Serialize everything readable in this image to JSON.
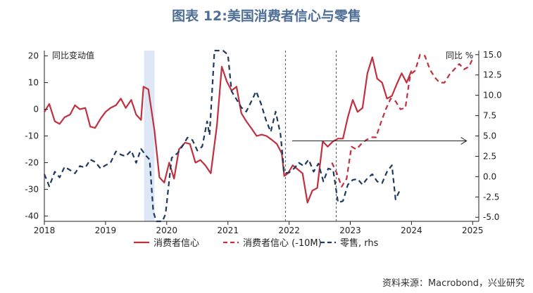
{
  "title": "图表 12:美国消费者信心与零售",
  "source": "资料来源：Macrobond，兴业研究",
  "chart_data": {
    "type": "line",
    "left_axis": {
      "label": "同比变动值",
      "ylim": [
        -42,
        22
      ],
      "ticks": [
        20,
        10,
        0,
        -10,
        -20,
        -30,
        -40
      ]
    },
    "right_axis": {
      "label": "同比 %",
      "ylim": [
        -5.5,
        15.5
      ],
      "ticks": [
        "15.0",
        "12.5",
        "10.0",
        "7.5",
        "5.0",
        "2.5",
        "0.0",
        "-2.5",
        "-5.0"
      ],
      "tick_values": [
        15,
        12.5,
        10,
        7.5,
        5,
        2.5,
        0,
        -2.5,
        -5
      ]
    },
    "x_axis": {
      "labels": [
        "2018",
        "2019",
        "2020",
        "2021",
        "2022",
        "2023",
        "2024",
        "2025"
      ],
      "label_values": [
        2018,
        2019,
        2020,
        2021,
        2022,
        2023,
        2024,
        2025
      ],
      "xlim": [
        2018,
        2025.1
      ]
    },
    "shaded_band": [
      2019.63,
      2019.8
    ],
    "vertical_lines": [
      2021.94,
      2022.77
    ],
    "annotation_arrow": {
      "from": [
        2022.05,
        4.4
      ],
      "to": [
        2024.9,
        4.4
      ],
      "axis": "right"
    },
    "series": [
      {
        "name": "消费者信心",
        "axis": "left",
        "style": "solid",
        "color": "#c0303f",
        "points": [
          [
            2018.0,
            -1
          ],
          [
            2018.08,
            2
          ],
          [
            2018.17,
            -4.5
          ],
          [
            2018.25,
            -5.5
          ],
          [
            2018.33,
            -3
          ],
          [
            2018.42,
            -2
          ],
          [
            2018.5,
            1.5
          ],
          [
            2018.58,
            0
          ],
          [
            2018.67,
            0.5
          ],
          [
            2018.75,
            -6.5
          ],
          [
            2018.83,
            -7
          ],
          [
            2018.92,
            -3.5
          ],
          [
            2019.0,
            -1
          ],
          [
            2019.08,
            0.5
          ],
          [
            2019.17,
            1.5
          ],
          [
            2019.25,
            4
          ],
          [
            2019.33,
            0.5
          ],
          [
            2019.42,
            3.5
          ],
          [
            2019.5,
            -2
          ],
          [
            2019.58,
            -4
          ],
          [
            2019.62,
            8.5
          ],
          [
            2019.7,
            7.5
          ],
          [
            2019.8,
            -8
          ],
          [
            2019.88,
            -25.5
          ],
          [
            2019.96,
            -27.5
          ],
          [
            2020.04,
            -20
          ],
          [
            2020.12,
            -26
          ],
          [
            2020.2,
            -15
          ],
          [
            2020.3,
            -12.5
          ],
          [
            2020.38,
            -13
          ],
          [
            2020.47,
            -20
          ],
          [
            2020.55,
            -19
          ],
          [
            2020.63,
            -21
          ],
          [
            2020.72,
            -24
          ],
          [
            2020.82,
            -6
          ],
          [
            2020.9,
            16
          ],
          [
            2020.98,
            10.5
          ],
          [
            2021.06,
            7
          ],
          [
            2021.14,
            8.5
          ],
          [
            2021.22,
            -1.5
          ],
          [
            2021.3,
            -4.5
          ],
          [
            2021.38,
            -7
          ],
          [
            2021.47,
            -10
          ],
          [
            2021.55,
            -9.5
          ],
          [
            2021.63,
            -10
          ],
          [
            2021.72,
            -11.5
          ],
          [
            2021.8,
            -13
          ],
          [
            2021.88,
            -16.5
          ],
          [
            2021.92,
            -25
          ],
          [
            2021.98,
            -24
          ],
          [
            2022.06,
            -21
          ],
          [
            2022.14,
            -22.5
          ],
          [
            2022.22,
            -24
          ],
          [
            2022.3,
            -35
          ],
          [
            2022.38,
            -30.5
          ],
          [
            2022.46,
            -29.5
          ],
          [
            2022.55,
            -12
          ],
          [
            2022.63,
            -14
          ],
          [
            2022.72,
            -12
          ],
          [
            2022.8,
            -11
          ],
          [
            2022.88,
            -11
          ],
          [
            2022.96,
            -3
          ],
          [
            2023.04,
            3.5
          ],
          [
            2023.12,
            -1
          ],
          [
            2023.2,
            0.5
          ],
          [
            2023.28,
            13.5
          ],
          [
            2023.36,
            19.5
          ],
          [
            2023.44,
            11.5
          ],
          [
            2023.52,
            10
          ],
          [
            2023.6,
            4
          ],
          [
            2023.68,
            5
          ],
          [
            2023.76,
            9.5
          ],
          [
            2023.84,
            13.5
          ],
          [
            2023.92,
            10
          ],
          [
            2024.0,
            14.5
          ]
        ]
      },
      {
        "name": "消费者信心 (-10M)",
        "axis": "left",
        "style": "dashed",
        "color": "#c0303f",
        "points": [
          [
            2022.7,
            -20
          ],
          [
            2022.78,
            -24
          ],
          [
            2022.86,
            -29
          ],
          [
            2022.94,
            -26
          ],
          [
            2023.02,
            -14
          ],
          [
            2023.1,
            -15
          ],
          [
            2023.18,
            -13
          ],
          [
            2023.26,
            -11.5
          ],
          [
            2023.34,
            -10.5
          ],
          [
            2023.42,
            -10.5
          ],
          [
            2023.5,
            -5
          ],
          [
            2023.58,
            0
          ],
          [
            2023.66,
            4
          ],
          [
            2023.74,
            3
          ],
          [
            2023.82,
            0
          ],
          [
            2023.9,
            0.5
          ],
          [
            2023.98,
            13
          ],
          [
            2024.06,
            14.5
          ],
          [
            2024.14,
            20.5
          ],
          [
            2024.22,
            20
          ],
          [
            2024.3,
            15
          ],
          [
            2024.38,
            12
          ],
          [
            2024.46,
            10
          ],
          [
            2024.54,
            10
          ],
          [
            2024.62,
            13
          ],
          [
            2024.7,
            15
          ],
          [
            2024.78,
            17
          ],
          [
            2024.86,
            15
          ],
          [
            2024.94,
            16
          ],
          [
            2025.0,
            19
          ]
        ]
      },
      {
        "name": "零售, rhs",
        "axis": "right",
        "style": "dashed",
        "color": "#1f3a5f",
        "points": [
          [
            2018.0,
            0.3
          ],
          [
            2018.08,
            -1.2
          ],
          [
            2018.17,
            0.6
          ],
          [
            2018.25,
            -0.1
          ],
          [
            2018.33,
            1.2
          ],
          [
            2018.42,
            0.8
          ],
          [
            2018.5,
            0.4
          ],
          [
            2018.58,
            1.3
          ],
          [
            2018.67,
            1.1
          ],
          [
            2018.75,
            2.1
          ],
          [
            2018.83,
            1.8
          ],
          [
            2018.92,
            1.0
          ],
          [
            2019.0,
            1.4
          ],
          [
            2019.08,
            1.7
          ],
          [
            2019.17,
            3.1
          ],
          [
            2019.25,
            2.7
          ],
          [
            2019.33,
            2.5
          ],
          [
            2019.42,
            3.2
          ],
          [
            2019.5,
            1.7
          ],
          [
            2019.58,
            3.4
          ],
          [
            2019.67,
            2.5
          ],
          [
            2019.72,
            2.1
          ],
          [
            2019.78,
            -4.3
          ],
          [
            2019.83,
            -20
          ],
          [
            2019.93,
            -20
          ],
          [
            2019.98,
            -4.6
          ],
          [
            2020.08,
            2.3
          ],
          [
            2020.18,
            2.9
          ],
          [
            2020.26,
            3.8
          ],
          [
            2020.34,
            4.8
          ],
          [
            2020.42,
            4.5
          ],
          [
            2020.5,
            3.2
          ],
          [
            2020.58,
            3.7
          ],
          [
            2020.66,
            6.8
          ],
          [
            2020.7,
            5.1
          ],
          [
            2020.78,
            19
          ],
          [
            2020.92,
            19
          ],
          [
            2021.0,
            15
          ],
          [
            2021.06,
            10.5
          ],
          [
            2021.14,
            9.5
          ],
          [
            2021.22,
            8.5
          ],
          [
            2021.3,
            8.0
          ],
          [
            2021.38,
            9.2
          ],
          [
            2021.46,
            10.5
          ],
          [
            2021.54,
            9.0
          ],
          [
            2021.62,
            7.0
          ],
          [
            2021.7,
            5.5
          ],
          [
            2021.78,
            8.0
          ],
          [
            2021.86,
            5.2
          ],
          [
            2021.92,
            0.4
          ],
          [
            2022.0,
            0.5
          ],
          [
            2022.08,
            1.0
          ],
          [
            2022.16,
            1.7
          ],
          [
            2022.24,
            1.3
          ],
          [
            2022.32,
            2.1
          ],
          [
            2022.4,
            0.6
          ],
          [
            2022.48,
            1.6
          ],
          [
            2022.56,
            -0.6
          ],
          [
            2022.64,
            1.0
          ],
          [
            2022.72,
            0.8
          ],
          [
            2022.8,
            -3.2
          ],
          [
            2022.88,
            -3.0
          ],
          [
            2022.96,
            -1.0
          ],
          [
            2023.04,
            -0.4
          ],
          [
            2023.12,
            -0.3
          ],
          [
            2023.2,
            -1.0
          ],
          [
            2023.28,
            -0.2
          ],
          [
            2023.36,
            0.3
          ],
          [
            2023.44,
            -0.6
          ],
          [
            2023.52,
            -0.8
          ],
          [
            2023.6,
            0.6
          ],
          [
            2023.68,
            1.4
          ],
          [
            2023.74,
            -2.8
          ],
          [
            2023.82,
            -1.5
          ]
        ]
      }
    ],
    "legend": {
      "position": "bottom"
    }
  }
}
